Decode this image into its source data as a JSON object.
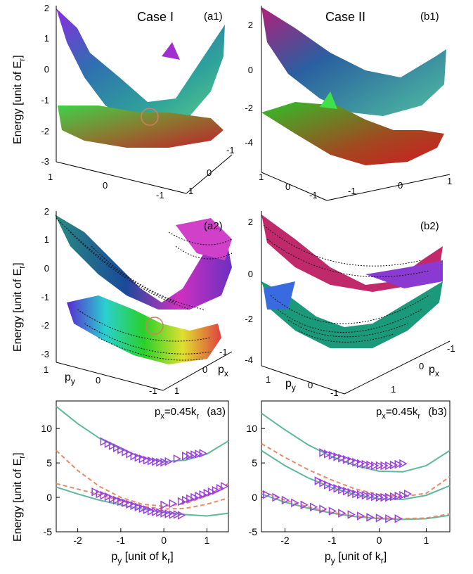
{
  "figure": {
    "case_titles": [
      "Case I",
      "Case II"
    ],
    "energy_label_main": "Energy [unit of E",
    "energy_label_sub": "r",
    "energy_label_end": "]",
    "py_main": "p",
    "py_sub": "y",
    "px_main": "p",
    "px_sub": "x",
    "unit_main": " [unit of k",
    "unit_sub": "r",
    "unit_end": "]",
    "cut_prefix": "=0.45k",
    "cut_sub": "r",
    "colors": {
      "upper_surface": "#2fa39a",
      "lower_surface": "#6dbf3a",
      "marker_circle": "#d08060",
      "theory_solid": "#5fb89a",
      "theory_dashed": "#e88a6a",
      "markers": "#9b40e0"
    }
  },
  "surface_panels": [
    {
      "id": "a1",
      "label": "(a1)",
      "z_ticks": [
        "2",
        "1",
        "0",
        "-1",
        "-2",
        "-3"
      ],
      "py_ticks": [
        "1",
        "0",
        "-1"
      ],
      "px_ticks": [
        "-1",
        "0",
        "1"
      ],
      "circle": true
    },
    {
      "id": "b1",
      "label": "(b1)",
      "z_ticks": [
        "2",
        "0",
        "-2",
        "-4"
      ],
      "py_ticks": [
        "1",
        "0",
        "-1"
      ],
      "px_ticks": [
        "-1",
        "0",
        "1"
      ],
      "circle": false
    },
    {
      "id": "a2",
      "label": "(a2)",
      "z_ticks": [
        "2",
        "1",
        "0",
        "-1",
        "-2",
        "-3"
      ],
      "py_ticks": [
        "1",
        "0",
        "-1"
      ],
      "px_ticks": [
        "-1",
        "0",
        "1"
      ],
      "circle": true
    },
    {
      "id": "b2",
      "label": "(b2)",
      "z_ticks": [
        "2",
        "0",
        "-2",
        "-4"
      ],
      "py_ticks": [
        "1",
        "0",
        "-1"
      ],
      "px_ticks": [
        "-1",
        "0",
        "1"
      ],
      "circle": false
    }
  ],
  "chart_data": [
    {
      "type": "line",
      "panel": "a3",
      "label": "(a3)",
      "annotation": "p_x=0.45k_r",
      "xlabel": "p_y [unit of k_r]",
      "ylabel": "Energy [unit of E_r]",
      "xlim": [
        -2.5,
        1.5
      ],
      "ylim": [
        -5,
        14
      ],
      "xticks": [
        -2,
        -1,
        0,
        1
      ],
      "yticks": [
        -5,
        0,
        5,
        10
      ],
      "series": [
        {
          "style": "solid",
          "x": [
            -2.5,
            -2,
            -1.5,
            -1,
            -0.5,
            0,
            0.5,
            1,
            1.5
          ],
          "y": [
            13.2,
            10.7,
            8.6,
            7.0,
            5.8,
            5.2,
            5.4,
            6.3,
            8.2
          ]
        },
        {
          "style": "solid",
          "x": [
            -2.5,
            -2,
            -1.5,
            -1,
            -0.5,
            0,
            0.5,
            1,
            1.5
          ],
          "y": [
            1.5,
            0.5,
            -0.4,
            -1.1,
            -1.7,
            -2.2,
            -2.5,
            -2.7,
            -2.3
          ]
        },
        {
          "style": "dashed",
          "x": [
            -2.5,
            -2,
            -1.5,
            -1,
            -0.5,
            0,
            0.5,
            1,
            1.5
          ],
          "y": [
            6.8,
            3.9,
            1.6,
            0.0,
            -1.0,
            -1.3,
            -0.9,
            0.2,
            2.0
          ]
        },
        {
          "style": "dashed",
          "x": [
            -2.5,
            -2,
            -1.5,
            -1,
            -0.5,
            0,
            0.5,
            1,
            1.5
          ],
          "y": [
            2.0,
            1.2,
            0.4,
            -0.5,
            -1.3,
            -1.7,
            -1.6,
            -1.0,
            -0.1
          ]
        },
        {
          "style": "markers",
          "x": [
            -1.4,
            -1.3,
            -1.2,
            -1.1,
            -1.0,
            -0.9,
            -0.8,
            -0.7,
            -0.6,
            -0.5,
            -0.4,
            -0.3,
            -0.2,
            -0.1,
            0.0,
            0.1,
            0.3,
            0.5,
            0.6,
            0.7,
            0.8,
            0.9
          ],
          "y": [
            8.1,
            7.8,
            7.5,
            7.2,
            6.9,
            6.6,
            6.3,
            6.0,
            5.8,
            5.6,
            5.4,
            5.3,
            5.2,
            5.1,
            5.1,
            5.2,
            5.6,
            6.0,
            6.1,
            6.2,
            6.3,
            6.4
          ]
        },
        {
          "style": "markers",
          "x": [
            -1.6,
            -1.5,
            -1.4,
            -1.3,
            -1.2,
            -1.1,
            -1.0,
            -0.9,
            -0.8,
            -0.7,
            -0.6,
            -0.5,
            -0.4,
            -0.3,
            -0.2,
            -0.1,
            0.0,
            0.1,
            0.2,
            0.3,
            0.4
          ],
          "y": [
            0.8,
            0.5,
            0.3,
            0.1,
            -0.2,
            -0.4,
            -0.6,
            -0.8,
            -1.0,
            -1.2,
            -1.4,
            -1.6,
            -1.8,
            -2.0,
            -2.1,
            -2.2,
            -2.3,
            -2.4,
            -2.5,
            -2.5,
            -2.6
          ]
        },
        {
          "style": "markers",
          "x": [
            0.0,
            0.2,
            0.4,
            0.5,
            0.6,
            0.7,
            0.8,
            0.9,
            1.0,
            1.1,
            1.2,
            1.3,
            1.4
          ],
          "y": [
            -1.1,
            -0.9,
            -0.6,
            -0.4,
            -0.2,
            0.0,
            0.2,
            0.4,
            0.6,
            0.8,
            1.0,
            1.3,
            1.6
          ]
        }
      ]
    },
    {
      "type": "line",
      "panel": "b3",
      "label": "(b3)",
      "annotation": "p_x=0.45k_r",
      "xlabel": "p_y [unit of k_r]",
      "ylabel": "",
      "xlim": [
        -2.5,
        1.5
      ],
      "ylim": [
        -5,
        14
      ],
      "xticks": [
        -2,
        -1,
        0,
        1
      ],
      "yticks": [
        -5,
        0,
        5,
        10
      ],
      "series": [
        {
          "style": "solid",
          "x": [
            -2.5,
            -2,
            -1.5,
            -1,
            -0.5,
            0,
            0.5,
            1,
            1.5
          ],
          "y": [
            12.2,
            9.8,
            7.6,
            5.9,
            4.6,
            3.8,
            3.7,
            4.6,
            6.8
          ]
        },
        {
          "style": "solid",
          "x": [
            -2.5,
            -2,
            -1.5,
            -1,
            -0.5,
            0,
            0.5,
            1,
            1.5
          ],
          "y": [
            6.8,
            4.6,
            2.8,
            1.4,
            0.4,
            -0.2,
            -0.3,
            0.3,
            1.7
          ]
        },
        {
          "style": "solid",
          "x": [
            -2.5,
            -2,
            -1.5,
            -1,
            -0.5,
            0,
            0.5,
            1,
            1.5
          ],
          "y": [
            0.5,
            -0.7,
            -1.6,
            -2.3,
            -2.8,
            -3.1,
            -3.2,
            -3.1,
            -2.6
          ]
        },
        {
          "style": "dashed",
          "x": [
            -2.5,
            -2,
            -1.5,
            -1,
            -0.5,
            0,
            0.5,
            1,
            1.5
          ],
          "y": [
            7.8,
            5.8,
            4.0,
            2.5,
            1.2,
            0.4,
            0.1,
            0.6,
            3.0
          ]
        },
        {
          "style": "dashed",
          "x": [
            -2.5,
            -2,
            -1.5,
            -1,
            -0.5,
            0,
            0.5,
            1,
            1.5
          ],
          "y": [
            0.9,
            -0.4,
            -1.4,
            -2.2,
            -2.7,
            -3.0,
            -3.1,
            -3.0,
            -2.4
          ]
        },
        {
          "style": "markers",
          "x": [
            -1.2,
            -1.1,
            -1.0,
            -0.9,
            -0.8,
            -0.7,
            -0.6,
            -0.5,
            -0.4,
            -0.3,
            -0.2,
            -0.1,
            0.0,
            0.1,
            0.2,
            0.3,
            0.4,
            0.5
          ],
          "y": [
            6.5,
            6.3,
            6.1,
            5.9,
            5.7,
            5.5,
            5.3,
            5.1,
            4.9,
            4.8,
            4.7,
            4.6,
            4.6,
            4.6,
            4.6,
            4.7,
            4.8,
            4.9
          ]
        },
        {
          "style": "markers",
          "x": [
            -1.3,
            -1.2,
            -1.1,
            -1.0,
            -0.9,
            -0.8,
            -0.7,
            -0.6,
            -0.5,
            -0.4,
            -0.3,
            -0.2,
            -0.1,
            0.0,
            0.1,
            0.2,
            0.3,
            0.4,
            0.5,
            0.6
          ],
          "y": [
            2.4,
            2.1,
            1.8,
            1.5,
            1.3,
            1.1,
            0.9,
            0.7,
            0.5,
            0.4,
            0.3,
            0.2,
            0.1,
            0.0,
            0.0,
            0.0,
            0.1,
            0.2,
            0.3,
            0.5
          ]
        },
        {
          "style": "markers",
          "x": [
            -2.4,
            -2.2,
            -2.0,
            -1.8,
            -1.6,
            -1.4,
            -1.2,
            -1.0,
            -0.8,
            -0.6,
            -0.4,
            -0.2,
            0.0,
            0.2,
            0.4
          ],
          "y": [
            0.4,
            0.0,
            -0.4,
            -0.8,
            -1.1,
            -1.4,
            -1.7,
            -2.0,
            -2.3,
            -2.5,
            -2.7,
            -2.9,
            -3.0,
            -3.1,
            -3.1
          ]
        }
      ]
    }
  ]
}
